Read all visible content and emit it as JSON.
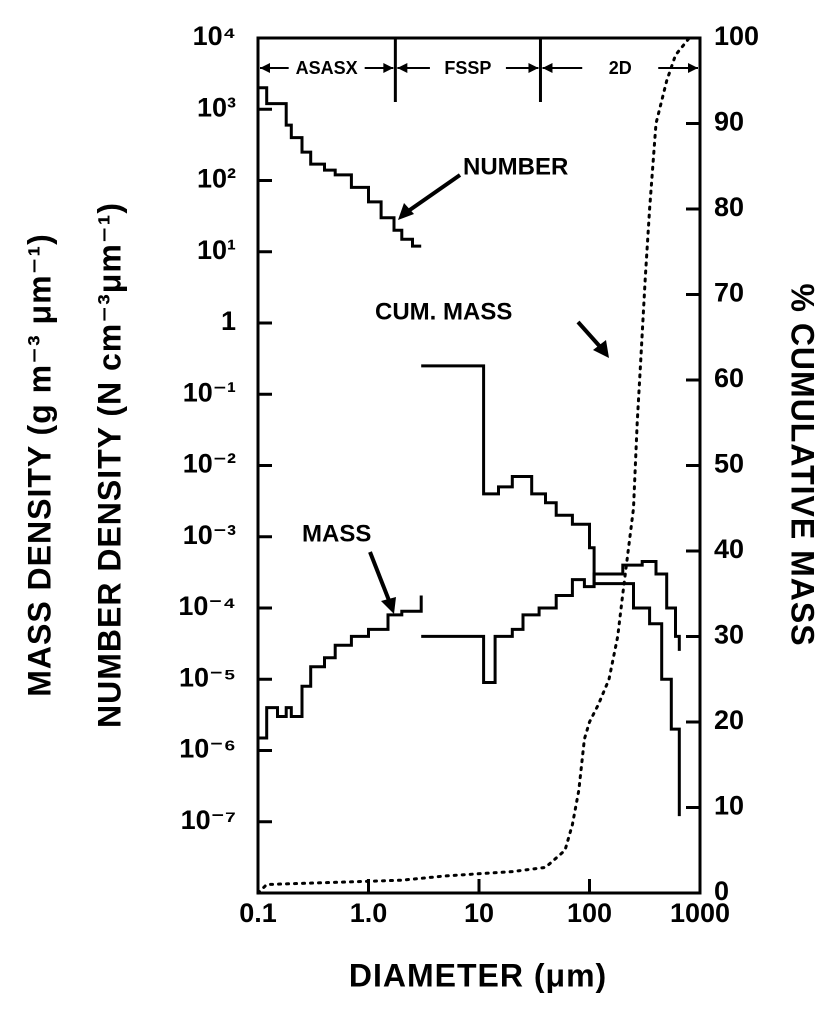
{
  "chart_data": {
    "type": "line",
    "xscale": "log",
    "yscale": "log",
    "xlabel": "DIAMETER (μm)",
    "ylabel": "MASS DENSITY (g m⁻³ μm⁻¹)",
    "ylabel_secondary": "NUMBER DENSITY (N cm⁻³μm⁻¹)",
    "y2label": "% CUMULATIVE MASS",
    "xlim": [
      0.1,
      1000
    ],
    "xticks": [
      0.1,
      {
        "value": 1,
        "label": "1.0"
      },
      10,
      100,
      1000
    ],
    "ylim": [
      1e-08,
      10000
    ],
    "yticks": [
      {
        "value": 10000,
        "label": "10⁴"
      },
      {
        "value": 1000,
        "label": "10³"
      },
      {
        "value": 100,
        "label": "10²"
      },
      {
        "value": 10,
        "label": "10¹"
      },
      1,
      {
        "value": 0.1,
        "label": "10⁻¹"
      },
      {
        "value": 0.01,
        "label": "10⁻²"
      },
      {
        "value": 0.001,
        "label": "10⁻³"
      },
      {
        "value": 0.0001,
        "label": "10⁻⁴"
      },
      {
        "value": 1e-05,
        "label": "10⁻⁵"
      },
      {
        "value": 1e-06,
        "label": "10⁻⁶"
      },
      {
        "value": 1e-07,
        "label": "10⁻⁷"
      }
    ],
    "y2lim": [
      0,
      100
    ],
    "y2ticks": [
      0,
      10,
      20,
      30,
      40,
      50,
      60,
      70,
      80,
      90,
      100
    ],
    "instruments": [
      {
        "label": "ASASX",
        "start": 0.1,
        "end": 1.75
      },
      {
        "label": "FSSP",
        "start": 1.75,
        "end": 36
      },
      {
        "label": "2D",
        "start": 36,
        "end": 1000
      }
    ],
    "annotations": [
      "NUMBER",
      "CUM. MASS",
      "MASS"
    ],
    "series": [
      {
        "color": "#000",
        "style": "step",
        "axis": "y",
        "x": [
          0.1,
          0.12,
          0.15,
          0.18,
          0.2,
          0.25,
          0.3,
          0.4,
          0.5,
          0.7,
          1.0,
          1.3,
          1.7,
          2.0,
          2.5,
          3.0,
          3.0,
          3.0,
          11,
          15,
          20,
          30,
          40,
          50,
          70,
          100,
          110,
          200,
          250,
          350,
          450,
          550,
          650
        ],
        "values": [
          2000,
          1200,
          1200,
          600,
          400,
          250,
          170,
          140,
          120,
          80,
          50,
          30,
          20,
          15,
          12,
          12,
          null,
          0.25,
          0.004,
          0.005,
          0.007,
          0.004,
          0.003,
          0.002,
          0.0015,
          0.0007,
          0.00022,
          0.00022,
          0.0001,
          6e-05,
          1e-05,
          2e-06,
          1.2e-07
        ]
      },
      {
        "color": "#000",
        "style": "step",
        "axis": "y",
        "x": [
          0.1,
          0.12,
          0.15,
          0.18,
          0.2,
          0.25,
          0.3,
          0.4,
          0.5,
          0.7,
          1.0,
          1.5,
          2.0,
          3.0,
          3.0,
          3.0,
          11,
          14,
          20,
          25,
          35,
          50,
          70,
          90,
          110,
          200,
          300,
          400,
          500,
          600,
          650
        ],
        "values": [
          1.5e-06,
          4e-06,
          3e-06,
          4e-06,
          3e-06,
          8e-06,
          1.5e-05,
          2e-05,
          3e-05,
          4e-05,
          5e-05,
          8e-05,
          9e-05,
          0.00015,
          null,
          4e-05,
          9e-06,
          4e-05,
          5e-05,
          8e-05,
          0.0001,
          0.00015,
          0.00025,
          0.0002,
          0.0003,
          0.0004,
          0.00045,
          0.0003,
          0.0001,
          4e-05,
          2.5e-05
        ]
      },
      {
        "color": "#000",
        "style": "dotted",
        "axis": "y2",
        "x": [
          0.1,
          0.12,
          2,
          5,
          20,
          40,
          60,
          70,
          80,
          90,
          100,
          120,
          150,
          180,
          200,
          250,
          270,
          290,
          320,
          350,
          400,
          500,
          600,
          800
        ],
        "values": [
          0,
          1,
          1.5,
          2,
          2.5,
          3,
          5,
          8,
          12,
          18,
          20,
          22,
          25,
          30,
          35,
          45,
          55,
          62,
          72,
          80,
          90,
          95,
          98,
          100
        ]
      }
    ]
  }
}
